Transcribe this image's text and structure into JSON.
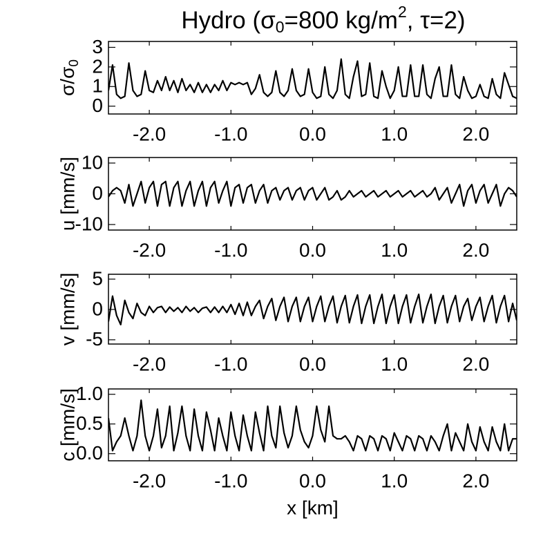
{
  "chart_data": [
    {
      "type": "line",
      "title": [
        "Hydro (σ",
        "0",
        "=800 kg/m",
        "2",
        ", τ=2)"
      ],
      "ylabel": [
        "σ/σ",
        "0"
      ],
      "color": "#000000",
      "xlim": [
        -2.5,
        2.5
      ],
      "xticks": [
        {
          "value": -2,
          "label": "-2.0"
        },
        {
          "value": -1,
          "label": "-1.0"
        },
        {
          "value": 0,
          "label": "0.0"
        },
        {
          "value": 1,
          "label": "1.0"
        },
        {
          "value": 2,
          "label": "2.0"
        }
      ],
      "ylim": [
        -0.4,
        3.3
      ],
      "yticks": [
        0,
        1,
        2,
        3
      ],
      "x": [
        -2.5,
        -2.45,
        -2.4,
        -2.35,
        -2.3,
        -2.25,
        -2.2,
        -2.15,
        -2.1,
        -2.05,
        -2.0,
        -1.95,
        -1.9,
        -1.85,
        -1.8,
        -1.75,
        -1.7,
        -1.65,
        -1.6,
        -1.55,
        -1.5,
        -1.45,
        -1.4,
        -1.35,
        -1.3,
        -1.25,
        -1.2,
        -1.15,
        -1.1,
        -1.05,
        -1.0,
        -0.95,
        -0.9,
        -0.85,
        -0.8,
        -0.75,
        -0.7,
        -0.65,
        -0.6,
        -0.55,
        -0.5,
        -0.45,
        -0.4,
        -0.35,
        -0.3,
        -0.25,
        -0.2,
        -0.15,
        -0.1,
        -0.05,
        0.0,
        0.05,
        0.1,
        0.15,
        0.2,
        0.25,
        0.3,
        0.35,
        0.4,
        0.45,
        0.5,
        0.55,
        0.6,
        0.65,
        0.7,
        0.75,
        0.8,
        0.85,
        0.9,
        0.95,
        1.0,
        1.05,
        1.1,
        1.15,
        1.2,
        1.25,
        1.3,
        1.35,
        1.4,
        1.45,
        1.5,
        1.55,
        1.6,
        1.65,
        1.7,
        1.75,
        1.8,
        1.85,
        1.9,
        1.95,
        2.0,
        2.05,
        2.1,
        2.15,
        2.2,
        2.25,
        2.3,
        2.35,
        2.4,
        2.45,
        2.5
      ],
      "values": [
        0.8,
        2.1,
        0.6,
        0.4,
        0.5,
        2.2,
        0.8,
        0.5,
        0.6,
        1.8,
        0.8,
        0.7,
        1.3,
        0.8,
        1.5,
        0.8,
        1.3,
        0.7,
        1.4,
        0.8,
        1.1,
        0.7,
        1.2,
        0.7,
        1.1,
        0.7,
        1.1,
        0.8,
        1.3,
        0.8,
        1.2,
        1.1,
        1.2,
        1.1,
        1.2,
        0.6,
        0.9,
        1.6,
        0.7,
        0.5,
        0.7,
        1.8,
        0.7,
        0.5,
        0.8,
        1.9,
        0.8,
        0.5,
        0.6,
        1.9,
        0.7,
        0.4,
        0.5,
        2.0,
        0.6,
        0.4,
        0.8,
        2.4,
        0.6,
        0.4,
        1.5,
        2.3,
        0.5,
        0.6,
        2.2,
        0.5,
        0.4,
        1.8,
        1.0,
        0.4,
        0.8,
        2.0,
        0.5,
        0.5,
        2.1,
        0.5,
        0.5,
        2.1,
        0.6,
        0.4,
        1.4,
        2.0,
        0.5,
        0.5,
        2.1,
        0.6,
        0.4,
        1.5,
        0.8,
        0.4,
        0.5,
        1.1,
        0.5,
        0.4,
        1.4,
        0.6,
        0.4,
        1.7,
        1.1,
        0.5,
        0.4
      ]
    },
    {
      "type": "line",
      "ylabel": "u [mm/s]",
      "color": "#000000",
      "xlim": [
        -2.5,
        2.5
      ],
      "xticks": [
        {
          "value": -2,
          "label": "-2.0"
        },
        {
          "value": -1,
          "label": "-1.0"
        },
        {
          "value": 0,
          "label": "0.0"
        },
        {
          "value": 1,
          "label": "1.0"
        },
        {
          "value": 2,
          "label": "2.0"
        }
      ],
      "ylim": [
        -11.8,
        11.8
      ],
      "yticks": [
        -10,
        0,
        10
      ],
      "x": [
        -2.5,
        -2.45,
        -2.4,
        -2.35,
        -2.3,
        -2.25,
        -2.2,
        -2.15,
        -2.1,
        -2.05,
        -2.0,
        -1.95,
        -1.9,
        -1.85,
        -1.8,
        -1.75,
        -1.7,
        -1.65,
        -1.6,
        -1.55,
        -1.5,
        -1.45,
        -1.4,
        -1.35,
        -1.3,
        -1.25,
        -1.2,
        -1.15,
        -1.1,
        -1.05,
        -1.0,
        -0.95,
        -0.9,
        -0.85,
        -0.8,
        -0.75,
        -0.7,
        -0.65,
        -0.6,
        -0.55,
        -0.5,
        -0.45,
        -0.4,
        -0.35,
        -0.3,
        -0.25,
        -0.2,
        -0.15,
        -0.1,
        -0.05,
        0.0,
        0.05,
        0.1,
        0.15,
        0.2,
        0.25,
        0.3,
        0.35,
        0.4,
        0.45,
        0.5,
        0.55,
        0.6,
        0.65,
        0.7,
        0.75,
        0.8,
        0.85,
        0.9,
        0.95,
        1.0,
        1.05,
        1.1,
        1.15,
        1.2,
        1.25,
        1.3,
        1.35,
        1.4,
        1.45,
        1.5,
        1.55,
        1.6,
        1.65,
        1.7,
        1.75,
        1.8,
        1.85,
        1.9,
        1.95,
        2.0,
        2.05,
        2.1,
        2.15,
        2.2,
        2.25,
        2.3,
        2.35,
        2.4,
        2.45,
        2.5
      ],
      "values": [
        -1,
        1,
        2,
        1,
        -3,
        3,
        -4,
        0,
        4,
        -3,
        2,
        4,
        -4,
        3,
        4,
        -4,
        2,
        4,
        -4,
        1,
        4,
        -4,
        1,
        4,
        -4,
        2,
        4,
        -3,
        1,
        4,
        -4,
        2,
        3,
        -3,
        2,
        3,
        -3,
        1,
        3,
        -3,
        1,
        2,
        -2,
        1,
        2,
        -2,
        1,
        2,
        -2,
        1,
        2,
        -2,
        0,
        2,
        -2,
        -1,
        1,
        -2,
        -1,
        1,
        -1,
        0,
        1,
        -1,
        0,
        1,
        -1,
        0,
        1,
        -1,
        0,
        1,
        -1,
        0,
        1,
        -1,
        0,
        1,
        -1,
        0,
        2,
        -2,
        0,
        2,
        -3,
        0,
        3,
        -4,
        1,
        3,
        -3,
        1,
        3,
        -3,
        0,
        3,
        -4,
        0,
        2,
        1,
        -1
      ]
    },
    {
      "type": "line",
      "ylabel": "v [mm/s]",
      "color": "#000000",
      "xlim": [
        -2.5,
        2.5
      ],
      "xticks": [
        {
          "value": -2,
          "label": "-2.0"
        },
        {
          "value": -1,
          "label": "-1.0"
        },
        {
          "value": 0,
          "label": "0.0"
        },
        {
          "value": 1,
          "label": "1.0"
        },
        {
          "value": 2,
          "label": "2.0"
        }
      ],
      "ylim": [
        -5.7,
        5.8
      ],
      "yticks": [
        -5,
        0,
        5
      ],
      "x": [
        -2.5,
        -2.45,
        -2.4,
        -2.35,
        -2.3,
        -2.25,
        -2.2,
        -2.15,
        -2.1,
        -2.05,
        -2.0,
        -1.95,
        -1.9,
        -1.85,
        -1.8,
        -1.75,
        -1.7,
        -1.65,
        -1.6,
        -1.55,
        -1.5,
        -1.45,
        -1.4,
        -1.35,
        -1.3,
        -1.25,
        -1.2,
        -1.15,
        -1.1,
        -1.05,
        -1.0,
        -0.95,
        -0.9,
        -0.85,
        -0.8,
        -0.75,
        -0.7,
        -0.65,
        -0.6,
        -0.55,
        -0.5,
        -0.45,
        -0.4,
        -0.35,
        -0.3,
        -0.25,
        -0.2,
        -0.15,
        -0.1,
        -0.05,
        0.0,
        0.05,
        0.1,
        0.15,
        0.2,
        0.25,
        0.3,
        0.35,
        0.4,
        0.45,
        0.5,
        0.55,
        0.6,
        0.65,
        0.7,
        0.75,
        0.8,
        0.85,
        0.9,
        0.95,
        1.0,
        1.05,
        1.1,
        1.15,
        1.2,
        1.25,
        1.3,
        1.35,
        1.4,
        1.45,
        1.5,
        1.55,
        1.6,
        1.65,
        1.7,
        1.75,
        1.8,
        1.85,
        1.9,
        1.95,
        2.0,
        2.05,
        2.1,
        2.15,
        2.2,
        2.25,
        2.3,
        2.35,
        2.4,
        2.45,
        2.5
      ],
      "values": [
        -2,
        2.2,
        -1,
        -2.5,
        1.5,
        -0.5,
        -1.5,
        1,
        -0.5,
        -1,
        0.5,
        -0.5,
        0.3,
        0.5,
        -0.5,
        0.4,
        -0.3,
        0.3,
        -0.5,
        0.5,
        -0.3,
        0.3,
        -0.5,
        0.2,
        0.4,
        -0.5,
        0.4,
        -0.5,
        0.5,
        -0.5,
        0.8,
        -0.8,
        1,
        -1,
        1.2,
        -1,
        0.5,
        1.5,
        -1.5,
        0.5,
        1.8,
        -1.8,
        0.5,
        2,
        -2,
        0.5,
        2,
        -2,
        0.5,
        2,
        -2,
        0.5,
        2.2,
        -2,
        0.5,
        2.2,
        -2.2,
        0.5,
        2.3,
        -2.2,
        0.5,
        2.4,
        -2.3,
        0.5,
        2.4,
        -2.3,
        0.5,
        2.5,
        -2.3,
        0.5,
        2.4,
        -2.3,
        0.5,
        2.4,
        -2.2,
        0.5,
        2.5,
        -2.2,
        0.5,
        2.5,
        -2.3,
        0.5,
        2.3,
        -2.2,
        0.5,
        2.3,
        -2,
        0.5,
        1.8,
        -1.8,
        0.5,
        2,
        -2,
        0.5,
        2.3,
        -2.2,
        0.5,
        2.3,
        -2,
        1,
        -1.8
      ]
    },
    {
      "type": "line",
      "ylabel": "c [mm/s]",
      "xlabel": "x [km]",
      "color": "#000000",
      "xlim": [
        -2.5,
        2.5
      ],
      "xticks": [
        {
          "value": -2,
          "label": "-2.0"
        },
        {
          "value": -1,
          "label": "-1.0"
        },
        {
          "value": 0,
          "label": "0.0"
        },
        {
          "value": 1,
          "label": "1.0"
        },
        {
          "value": 2,
          "label": "2.0"
        }
      ],
      "ylim": [
        -0.12,
        1.09
      ],
      "yticks": [
        {
          "value": 0,
          "label": "0.0"
        },
        0.5,
        {
          "value": 1,
          "label": "1.0"
        }
      ],
      "x": [
        -2.5,
        -2.45,
        -2.4,
        -2.35,
        -2.3,
        -2.25,
        -2.2,
        -2.15,
        -2.1,
        -2.05,
        -2.0,
        -1.95,
        -1.9,
        -1.85,
        -1.8,
        -1.75,
        -1.7,
        -1.65,
        -1.6,
        -1.55,
        -1.5,
        -1.45,
        -1.4,
        -1.35,
        -1.3,
        -1.25,
        -1.2,
        -1.15,
        -1.1,
        -1.05,
        -1.0,
        -0.95,
        -0.9,
        -0.85,
        -0.8,
        -0.75,
        -0.7,
        -0.65,
        -0.6,
        -0.55,
        -0.5,
        -0.45,
        -0.4,
        -0.35,
        -0.3,
        -0.25,
        -0.2,
        -0.15,
        -0.1,
        -0.05,
        0.0,
        0.05,
        0.1,
        0.15,
        0.2,
        0.25,
        0.3,
        0.35,
        0.4,
        0.45,
        0.5,
        0.55,
        0.6,
        0.65,
        0.7,
        0.75,
        0.8,
        0.85,
        0.9,
        0.95,
        1.0,
        1.05,
        1.1,
        1.15,
        1.2,
        1.25,
        1.3,
        1.35,
        1.4,
        1.45,
        1.5,
        1.55,
        1.6,
        1.65,
        1.7,
        1.75,
        1.8,
        1.85,
        1.9,
        1.95,
        2.0,
        2.05,
        2.1,
        2.15,
        2.2,
        2.25,
        2.3,
        2.35,
        2.4,
        2.45,
        2.5
      ],
      "values": [
        0.6,
        0.05,
        0.2,
        0.3,
        0.6,
        0.3,
        0.05,
        0.3,
        0.9,
        0.3,
        0.05,
        0.3,
        0.75,
        0.1,
        0.3,
        0.8,
        0.05,
        0.35,
        0.8,
        0.3,
        0.05,
        0.75,
        0.3,
        0.05,
        0.7,
        0.4,
        0.05,
        0.6,
        0.3,
        0.05,
        0.7,
        0.3,
        0.05,
        0.65,
        0.3,
        0.05,
        0.7,
        0.35,
        0.05,
        0.8,
        0.3,
        0.1,
        0.8,
        0.35,
        0.1,
        0.3,
        0.8,
        0.4,
        0.2,
        0.1,
        0.3,
        0.8,
        0.4,
        0.2,
        0.8,
        0.3,
        0.25,
        0.25,
        0.3,
        0.2,
        0.05,
        0.3,
        0.25,
        0.05,
        0.3,
        0.25,
        0.05,
        0.3,
        0.25,
        0.05,
        0.35,
        0.2,
        0.05,
        0.3,
        0.25,
        0.05,
        0.3,
        0.25,
        0.05,
        0.3,
        0.2,
        0.05,
        0.3,
        0.5,
        0.05,
        0.35,
        0.2,
        0.05,
        0.5,
        0.2,
        0.05,
        0.45,
        0.2,
        0.05,
        0.45,
        0.2,
        0.05,
        0.5,
        0.05,
        0.25,
        0.25
      ]
    }
  ]
}
